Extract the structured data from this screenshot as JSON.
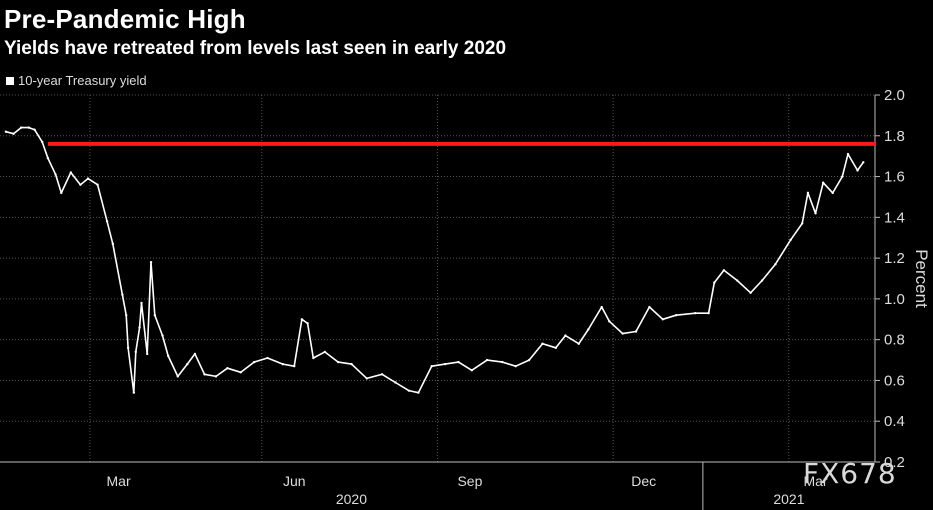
{
  "header": {
    "title": "Pre-Pandemic High",
    "subtitle": "Yields have retreated from levels last seen in early 2020"
  },
  "legend": {
    "label": "10-year Treasury yield"
  },
  "watermark": "FX678",
  "colors": {
    "background": "#000000",
    "series": "#ffffff",
    "reference_line": "#ff1a1a",
    "grid": "#555555"
  },
  "chart_data": {
    "type": "line",
    "title": "Pre-Pandemic High",
    "subtitle": "Yields have retreated from levels last seen in early 2020",
    "xlabel": "",
    "ylabel": "Percent",
    "ylim": [
      0.2,
      2.0
    ],
    "yticks": [
      0.2,
      0.4,
      0.6,
      0.8,
      1.0,
      1.2,
      1.4,
      1.6,
      1.8,
      2.0
    ],
    "x_tick_labels": [
      "Mar",
      "Jun",
      "Sep",
      "Dec",
      "Mar"
    ],
    "x_year_labels": [
      "2020",
      "2021"
    ],
    "reference_line": {
      "y": 1.76
    },
    "grid": true,
    "legend_position": "top-left",
    "series": [
      {
        "name": "10-year Treasury yield",
        "x": [
          "2020-01-02",
          "2020-01-06",
          "2020-01-10",
          "2020-01-14",
          "2020-01-17",
          "2020-01-21",
          "2020-01-24",
          "2020-01-28",
          "2020-01-31",
          "2020-02-05",
          "2020-02-10",
          "2020-02-14",
          "2020-02-19",
          "2020-02-24",
          "2020-02-27",
          "2020-03-03",
          "2020-03-05",
          "2020-03-06",
          "2020-03-09",
          "2020-03-10",
          "2020-03-12",
          "2020-03-13",
          "2020-03-16",
          "2020-03-18",
          "2020-03-20",
          "2020-03-24",
          "2020-03-27",
          "2020-04-01",
          "2020-04-06",
          "2020-04-10",
          "2020-04-15",
          "2020-04-21",
          "2020-04-27",
          "2020-05-04",
          "2020-05-11",
          "2020-05-18",
          "2020-05-26",
          "2020-06-01",
          "2020-06-05",
          "2020-06-08",
          "2020-06-11",
          "2020-06-17",
          "2020-06-24",
          "2020-07-01",
          "2020-07-09",
          "2020-07-17",
          "2020-07-24",
          "2020-07-31",
          "2020-08-05",
          "2020-08-12",
          "2020-08-19",
          "2020-08-26",
          "2020-09-02",
          "2020-09-10",
          "2020-09-18",
          "2020-09-25",
          "2020-10-02",
          "2020-10-09",
          "2020-10-16",
          "2020-10-21",
          "2020-10-28",
          "2020-11-02",
          "2020-11-09",
          "2020-11-13",
          "2020-11-20",
          "2020-11-27",
          "2020-12-04",
          "2020-12-11",
          "2020-12-18",
          "2020-12-28",
          "2021-01-04",
          "2021-01-07",
          "2021-01-12",
          "2021-01-19",
          "2021-01-26",
          "2021-02-01",
          "2021-02-08",
          "2021-02-16",
          "2021-02-22",
          "2021-02-25",
          "2021-03-01",
          "2021-03-05",
          "2021-03-10",
          "2021-03-15",
          "2021-03-18",
          "2021-03-23",
          "2021-03-26"
        ],
        "values": [
          1.82,
          1.81,
          1.84,
          1.84,
          1.83,
          1.77,
          1.69,
          1.61,
          1.52,
          1.62,
          1.56,
          1.59,
          1.56,
          1.38,
          1.27,
          1.02,
          0.92,
          0.76,
          0.54,
          0.74,
          0.86,
          0.98,
          0.73,
          1.18,
          0.92,
          0.82,
          0.72,
          0.62,
          0.68,
          0.73,
          0.63,
          0.62,
          0.66,
          0.64,
          0.69,
          0.71,
          0.68,
          0.67,
          0.9,
          0.88,
          0.71,
          0.74,
          0.69,
          0.68,
          0.61,
          0.63,
          0.59,
          0.55,
          0.54,
          0.67,
          0.68,
          0.69,
          0.65,
          0.7,
          0.69,
          0.67,
          0.7,
          0.78,
          0.76,
          0.82,
          0.78,
          0.85,
          0.96,
          0.89,
          0.83,
          0.84,
          0.96,
          0.9,
          0.92,
          0.93,
          0.93,
          1.08,
          1.14,
          1.09,
          1.03,
          1.09,
          1.17,
          1.29,
          1.37,
          1.52,
          1.42,
          1.57,
          1.52,
          1.6,
          1.71,
          1.63,
          1.67
        ]
      }
    ]
  }
}
